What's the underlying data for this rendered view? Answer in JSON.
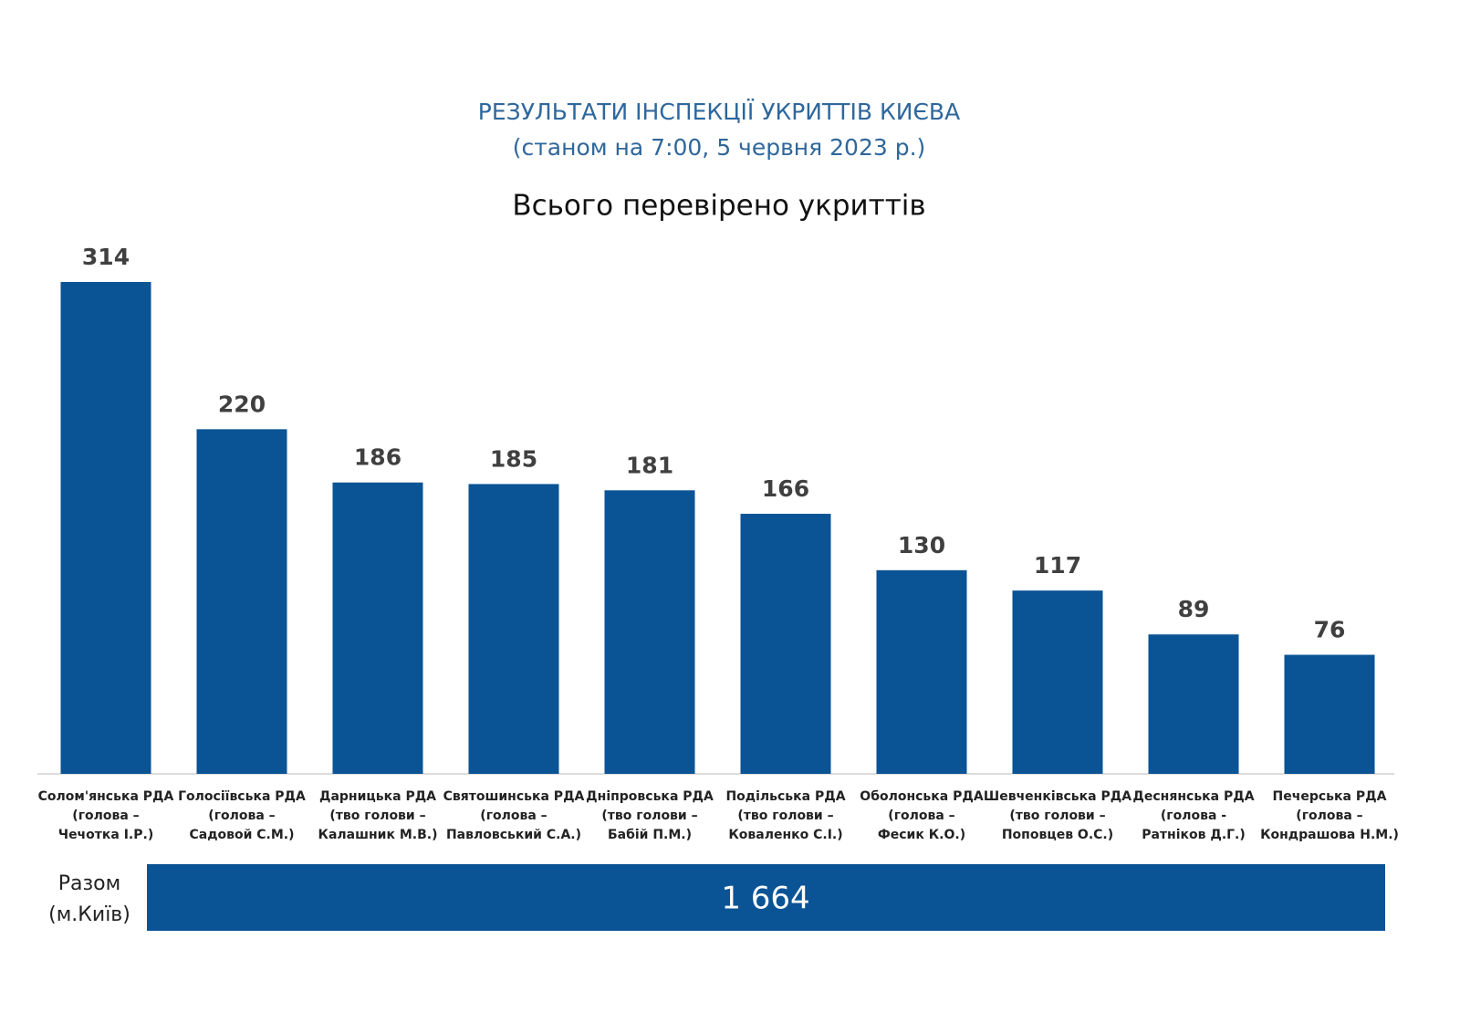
{
  "chart_data": {
    "type": "bar",
    "title": "РЕЗУЛЬТАТИ ІНСПЕКЦІЇ УКРИТТІВ КИЄВА",
    "subtitle": "(станом на 7:00, 5 червня 2023 р.)",
    "chart_title": "Всього перевірено укриттів",
    "color": "#0a5395",
    "categories": [
      [
        "Солом'янська РДА",
        "(голова –",
        "Чечотка І.Р.)"
      ],
      [
        "Голосіївська РДА",
        "(голова –",
        "Садовой С.М.)"
      ],
      [
        "Дарницька РДА",
        "(тво голови –",
        "Калашник М.В.)"
      ],
      [
        "Святошинська РДА",
        "(голова –",
        "Павловський С.А.)"
      ],
      [
        "Дніпровська РДА",
        "(тво голови –",
        "Бабій П.М.)"
      ],
      [
        "Подільська РДА",
        "(тво голови –",
        "Коваленко С.І.)"
      ],
      [
        "Оболонська РДА",
        "(голова –",
        "Фесик К.О.)"
      ],
      [
        "Шевченківська РДА",
        "(тво голови –",
        "Поповцев О.С.)"
      ],
      [
        "Деснянська РДА",
        "(голова -",
        "Ратніков Д.Г.)"
      ],
      [
        "Печерська РДА",
        "(голова –",
        "Кондрашова Н.М.)"
      ]
    ],
    "values": [
      314,
      220,
      186,
      185,
      181,
      166,
      130,
      117,
      89,
      76
    ],
    "total": {
      "label": [
        "Разом",
        "(м.Київ)"
      ],
      "value": 1664,
      "value_label": "1 664"
    }
  }
}
